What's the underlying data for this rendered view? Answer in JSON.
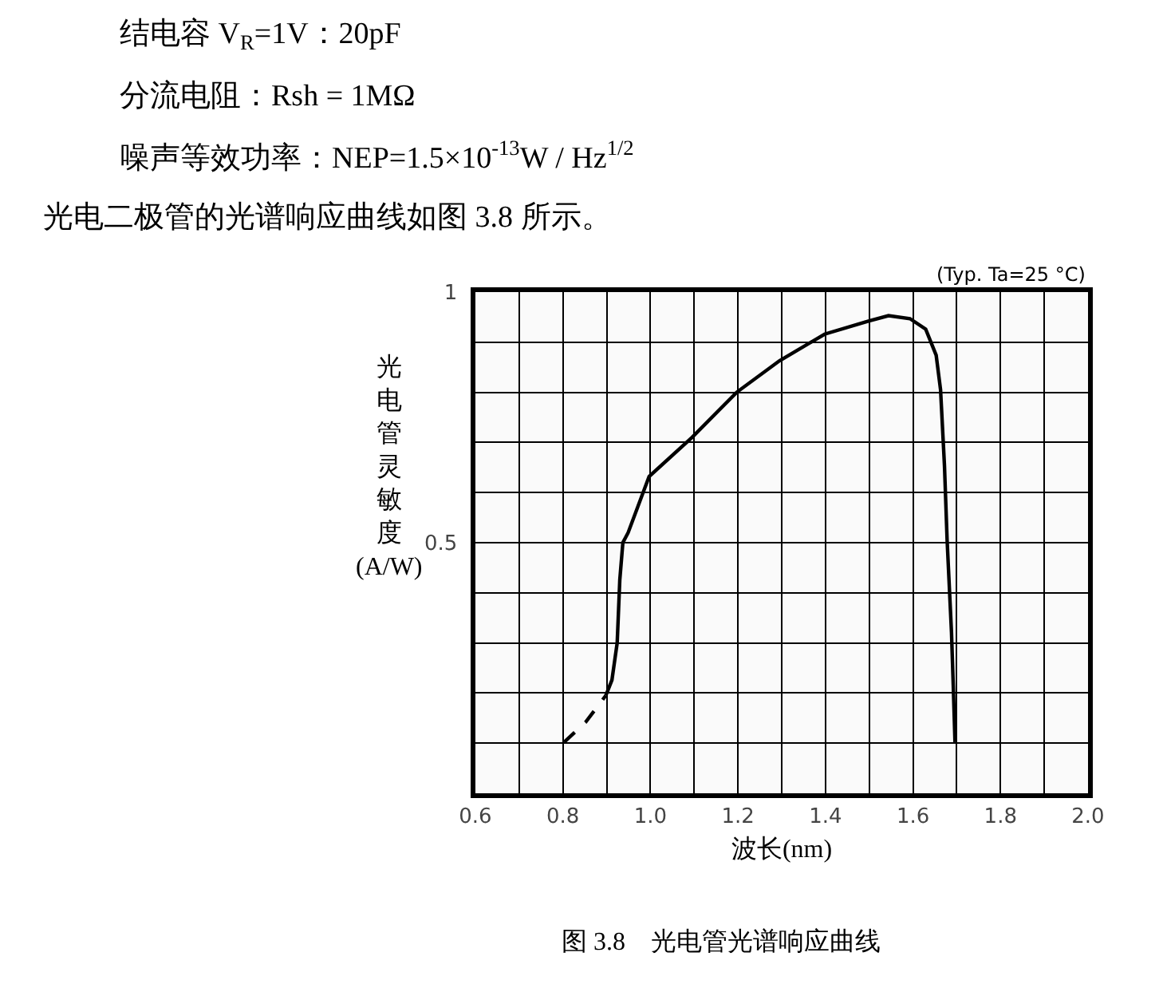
{
  "chart_data": {
    "type": "line",
    "annotations": [
      "结电容 V$_{R}$=1V：20pF",
      "分流电阻：Rsh = 1MΩ",
      "噪声等效功率：NEP=1.5×10$^{-13}$W / Hz$^{1/2}$",
      "光电二极管的光谱响应曲线如图 3.8 所示。",
      "(Typ. Ta=25 °C)",
      "图 3.8　光电管光谱响应曲线"
    ],
    "xlabel": "波长(nm)",
    "ylabel": "光电管灵敏度(A/W)",
    "series": [
      {
        "color": "#000000",
        "line_style": "dashed",
        "x": [
          0.803,
          0.852,
          0.898
        ],
        "values": [
          0.102,
          0.142,
          0.195
        ]
      },
      {
        "color": "#000000",
        "line_style": "solid",
        "x": [
          0.898,
          0.912,
          0.924,
          0.93,
          0.937,
          0.949,
          0.997,
          1.095,
          1.197,
          1.295,
          1.398,
          1.498,
          1.544,
          1.593,
          1.629,
          1.653,
          1.663,
          1.672,
          1.678,
          1.688,
          1.692,
          1.696
        ],
        "values": [
          0.195,
          0.226,
          0.3,
          0.426,
          0.5,
          0.52,
          0.632,
          0.71,
          0.8,
          0.863,
          0.916,
          0.942,
          0.953,
          0.947,
          0.926,
          0.874,
          0.805,
          0.653,
          0.505,
          0.321,
          0.216,
          0.102
        ]
      }
    ],
    "xlim": [
      0.6,
      2.0
    ],
    "xticks": [
      0.6,
      {
        "value": 0.7,
        "label": null
      },
      0.8,
      {
        "value": 0.9,
        "label": null
      },
      {
        "value": 1,
        "label": "1.0"
      },
      {
        "value": 1.1,
        "label": null
      },
      1.2,
      {
        "value": 1.3,
        "label": null
      },
      1.4,
      {
        "value": 1.5,
        "label": null
      },
      1.6,
      {
        "value": 1.7,
        "label": null
      },
      1.8,
      {
        "value": 1.9,
        "label": null
      },
      {
        "value": 2,
        "label": "2.0"
      }
    ],
    "ylim": [
      0,
      1
    ],
    "yticks": [
      {
        "value": 0,
        "label": null
      },
      {
        "value": 0.1,
        "label": null
      },
      {
        "value": 0.2,
        "label": null
      },
      {
        "value": 0.3,
        "label": null
      },
      {
        "value": 0.4,
        "label": null
      },
      0.5,
      {
        "value": 0.6,
        "label": null
      },
      {
        "value": 0.7,
        "label": null
      },
      {
        "value": 0.8,
        "label": null
      },
      {
        "value": 0.9,
        "label": null
      },
      1
    ],
    "grid": true
  }
}
